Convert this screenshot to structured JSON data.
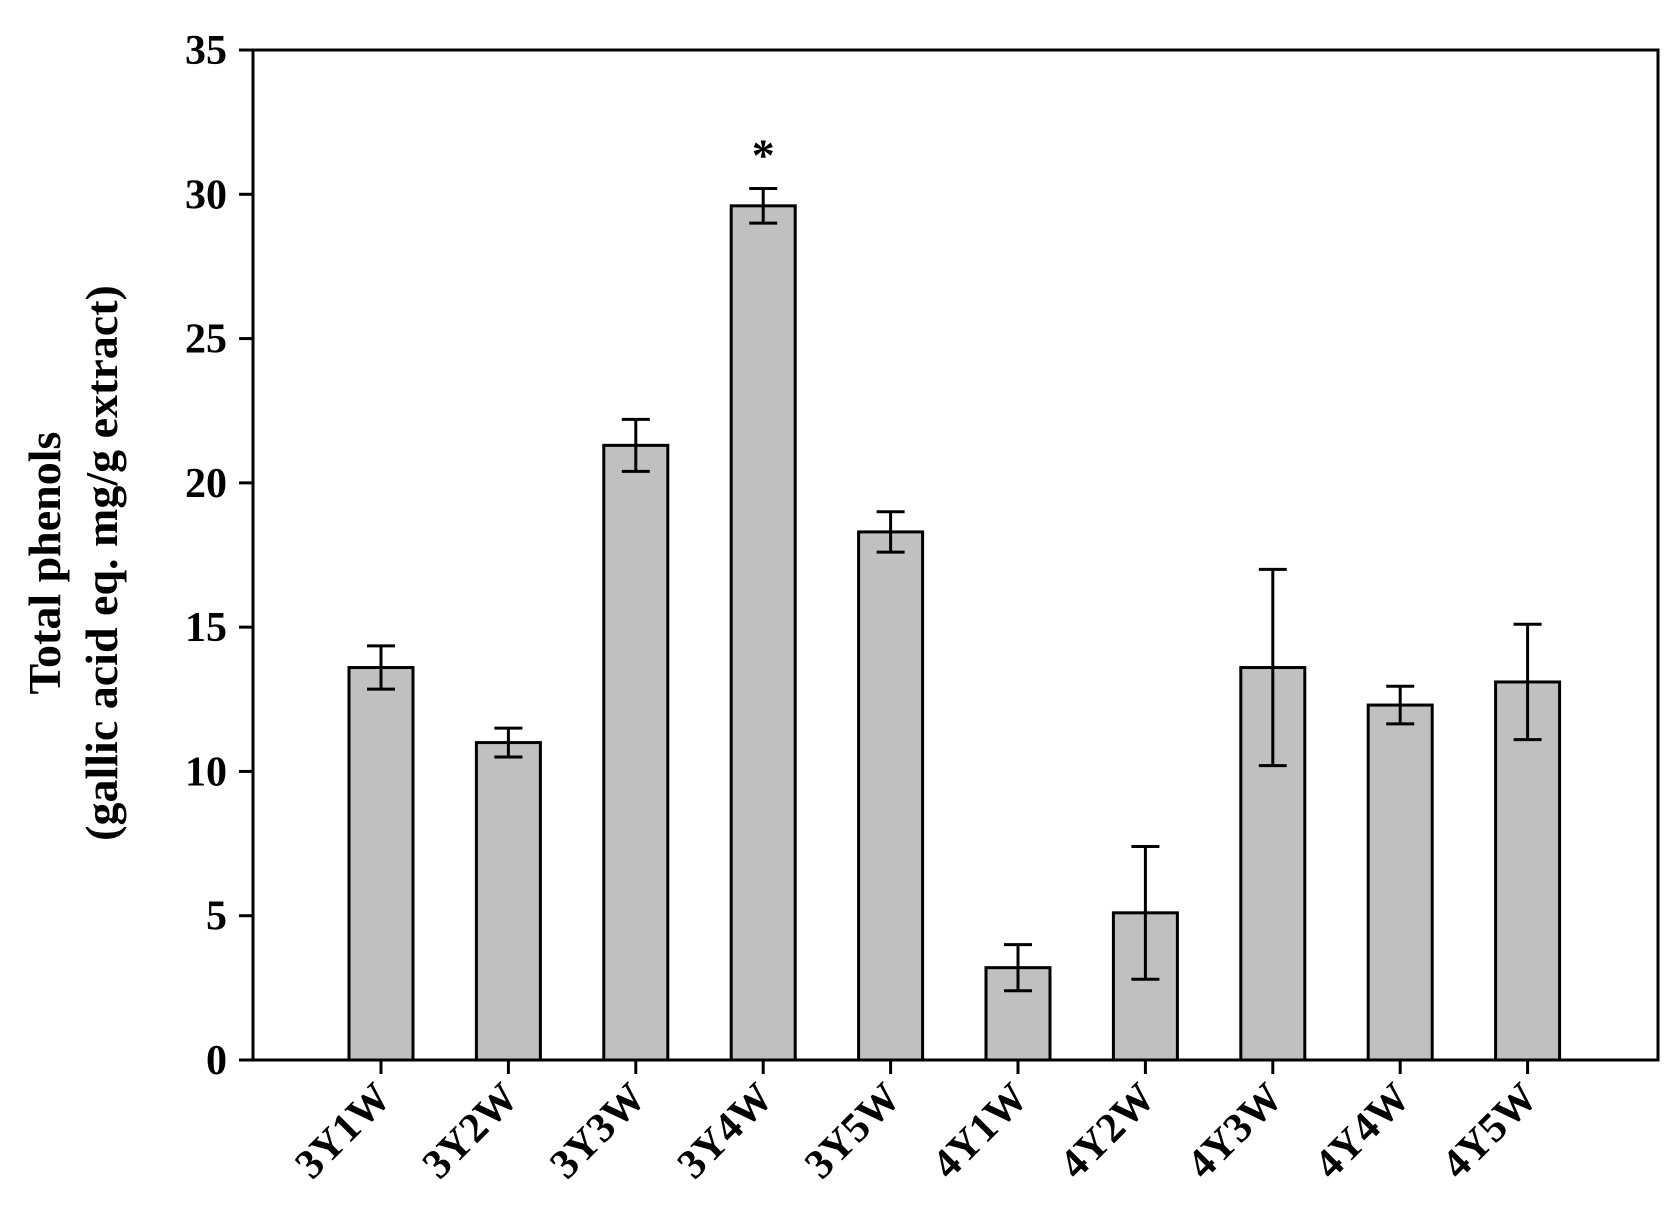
{
  "chart_data": {
    "type": "bar",
    "title": "",
    "ylabel_lines": [
      "Total phenols",
      "(gallic acid eq. mg/g extract)"
    ],
    "xlabel": "",
    "ylim": [
      0,
      35
    ],
    "yticks": [
      0,
      5,
      10,
      15,
      20,
      25,
      30,
      35
    ],
    "categories": [
      "3Y1W",
      "3Y2W",
      "3Y3W",
      "3Y4W",
      "3Y5W",
      "4Y1W",
      "4Y2W",
      "4Y3W",
      "4Y4W",
      "4Y5W"
    ],
    "values": [
      13.6,
      11.0,
      21.3,
      29.6,
      18.3,
      3.2,
      5.1,
      13.6,
      12.3,
      13.1
    ],
    "errors": [
      0.75,
      0.5,
      0.9,
      0.6,
      0.7,
      0.8,
      2.3,
      3.4,
      0.65,
      2.0
    ],
    "annotations": [
      {
        "category": "3Y4W",
        "text": "*"
      }
    ],
    "bar_color": "#c0c0c0",
    "grid": false,
    "legend": "none"
  }
}
